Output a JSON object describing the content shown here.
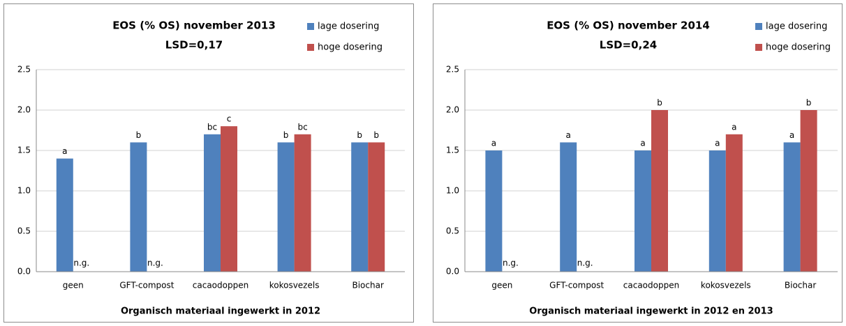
{
  "chart_data": [
    {
      "type": "bar",
      "title": "EOS (% OS) november 2013",
      "subtitle": "LSD=0,17",
      "x_label": "Organisch materiaal ingewerkt in 2012",
      "categories": [
        "geen",
        "GFT-compost",
        "cacaodoppen",
        "kokosvezels",
        "Biochar"
      ],
      "series": [
        {
          "name": "lage dosering",
          "color": "#4f81bd",
          "values": [
            1.4,
            1.6,
            1.7,
            1.6,
            1.6
          ],
          "annotations": [
            "a",
            "b",
            "bc",
            "b",
            "b"
          ]
        },
        {
          "name": "hoge dosering",
          "color": "#c0504d",
          "values": [
            null,
            null,
            1.8,
            1.7,
            1.6
          ],
          "annotations": [
            "n.g.",
            "n.g.",
            "c",
            "bc",
            "b"
          ]
        }
      ],
      "ylim": [
        0,
        2.5
      ],
      "yticks": [
        {
          "value": 0,
          "label": "0.0"
        },
        0.5,
        {
          "value": 1,
          "label": "1.0"
        },
        1.5,
        {
          "value": 2,
          "label": "2.0"
        },
        2.5
      ],
      "grid": true,
      "legend": "top-right"
    },
    {
      "type": "bar",
      "title": "EOS (% OS) november 2014",
      "subtitle": "LSD=0,24",
      "x_label": "Organisch materiaal ingewerkt in 2012 en 2013",
      "categories": [
        "geen",
        "GFT-compost",
        "cacaodoppen",
        "kokosvezels",
        "Biochar"
      ],
      "series": [
        {
          "name": "lage dosering",
          "color": "#4f81bd",
          "values": [
            1.5,
            1.6,
            1.5,
            1.5,
            1.6
          ],
          "annotations": [
            "a",
            "a",
            "a",
            "a",
            "a"
          ]
        },
        {
          "name": "hoge dosering",
          "color": "#c0504d",
          "values": [
            null,
            null,
            2.0,
            1.7,
            2.0
          ],
          "annotations": [
            "n.g.",
            "n.g.",
            "b",
            "a",
            "b"
          ]
        }
      ],
      "ylim": [
        0,
        2.5
      ],
      "yticks": [
        {
          "value": 0,
          "label": "0.0"
        },
        0.5,
        {
          "value": 1,
          "label": "1.0"
        },
        1.5,
        {
          "value": 2,
          "label": "2.0"
        },
        2.5
      ],
      "grid": true,
      "legend": "top-right"
    }
  ]
}
